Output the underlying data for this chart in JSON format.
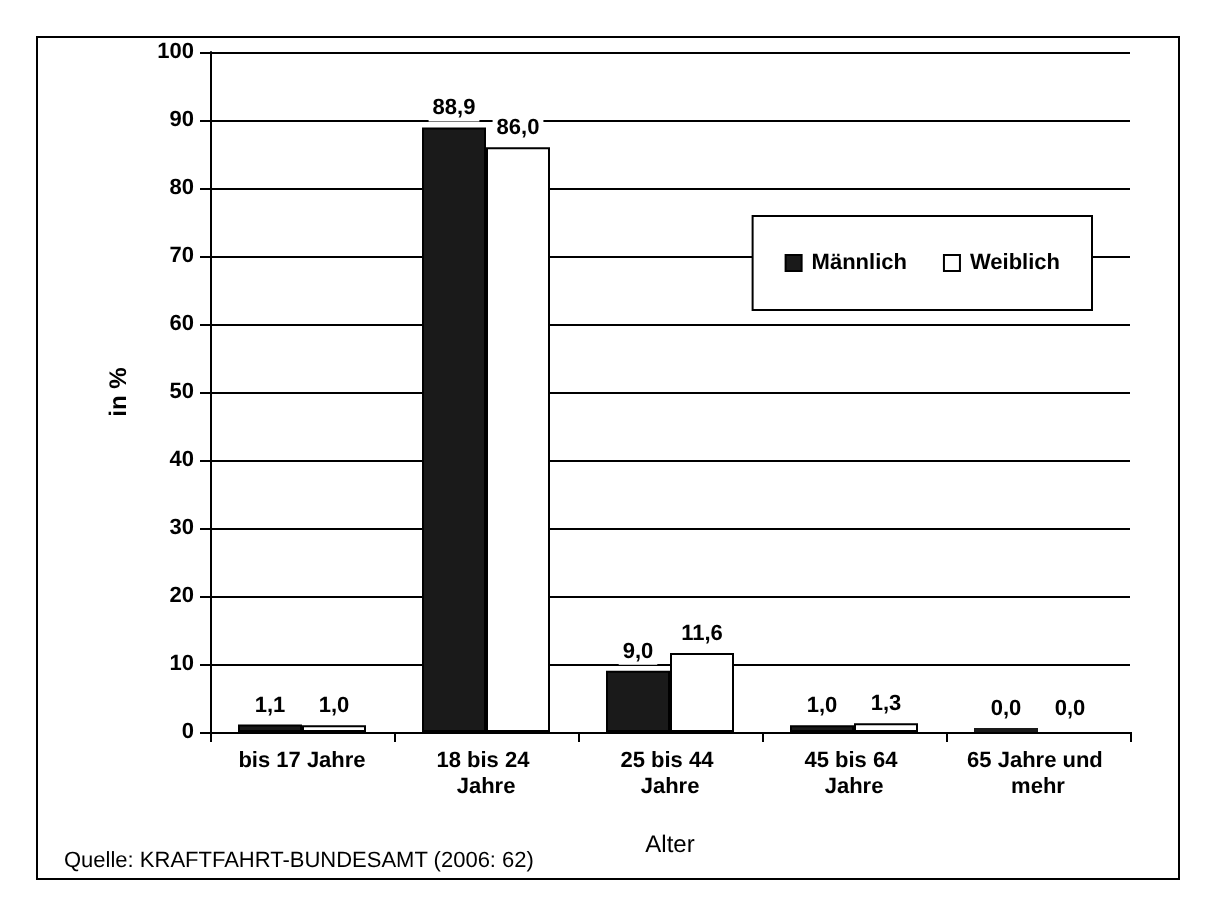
{
  "chart_data": {
    "type": "bar",
    "xlabel": "Alter",
    "ylabel": "in %",
    "categories": [
      "bis 17 Jahre",
      "18 bis 24 Jahre",
      "25 bis 44 Jahre",
      "45 bis 64 Jahre",
      "65 Jahre und mehr"
    ],
    "series": [
      {
        "name": "Männlich",
        "color": "#1a1a1a",
        "values": [
          1.1,
          88.9,
          9.0,
          1.0,
          0.0
        ],
        "value_labels": [
          "1,1",
          "88,9",
          "9,0",
          "1,0",
          "0,0"
        ]
      },
      {
        "name": "Weiblich",
        "color": "#ffffff",
        "values": [
          1.0,
          86.0,
          11.6,
          1.3,
          0.0
        ],
        "value_labels": [
          "1,0",
          "86,0",
          "11,6",
          "1,3",
          "0,0"
        ]
      }
    ],
    "ylim": [
      0,
      100
    ],
    "yticks": [
      0,
      10,
      20,
      30,
      40,
      50,
      60,
      70,
      80,
      90,
      100
    ],
    "grid": "y",
    "legend": "top right",
    "annotations": [
      "Quelle: KRAFTFAHRT-BUNDESAMT (2006: 62)"
    ]
  }
}
